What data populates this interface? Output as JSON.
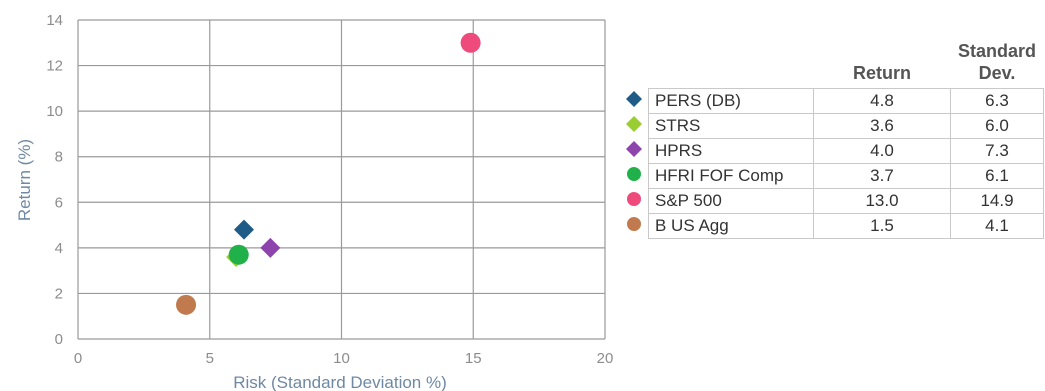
{
  "chart_data": {
    "type": "scatter",
    "title": "",
    "xlabel": "Risk (Standard Deviation %)",
    "ylabel": "Return (%)",
    "xlim": [
      0,
      20
    ],
    "ylim": [
      0,
      14
    ],
    "xticks": [
      0,
      5,
      10,
      15,
      20
    ],
    "yticks": [
      0,
      2,
      4,
      6,
      8,
      10,
      12,
      14
    ],
    "grid": true,
    "series": [
      {
        "name": "PERS (DB)",
        "marker": "diamond",
        "color": "#1f5b87",
        "x": 6.3,
        "y": 4.8
      },
      {
        "name": "STRS",
        "marker": "diamond",
        "color": "#9acd32",
        "x": 6.0,
        "y": 3.6
      },
      {
        "name": "HPRS",
        "marker": "diamond",
        "color": "#8e44ad",
        "x": 7.3,
        "y": 4.0
      },
      {
        "name": "HFRI FOF Comp",
        "marker": "circle",
        "color": "#21b14b",
        "x": 6.1,
        "y": 3.7
      },
      {
        "name": "S&P 500",
        "marker": "circle",
        "color": "#ee4a7c",
        "x": 14.9,
        "y": 13.0
      },
      {
        "name": "B US Agg",
        "marker": "circle",
        "color": "#c07a4e",
        "x": 4.1,
        "y": 1.5
      }
    ]
  },
  "table": {
    "headers": {
      "return": "Return",
      "sd_line1": "Standard",
      "sd_line2": "Dev."
    },
    "rows": [
      {
        "name": "PERS (DB)",
        "return": "4.8",
        "sd": "6.3"
      },
      {
        "name": "STRS",
        "return": "3.6",
        "sd": "6.0"
      },
      {
        "name": "HPRS",
        "return": "4.0",
        "sd": "7.3"
      },
      {
        "name": "HFRI FOF Comp",
        "return": "3.7",
        "sd": "6.1"
      },
      {
        "name": "S&P 500",
        "return": "13.0",
        "sd": "14.9"
      },
      {
        "name": "B US Agg",
        "return": "1.5",
        "sd": "4.1"
      }
    ]
  }
}
